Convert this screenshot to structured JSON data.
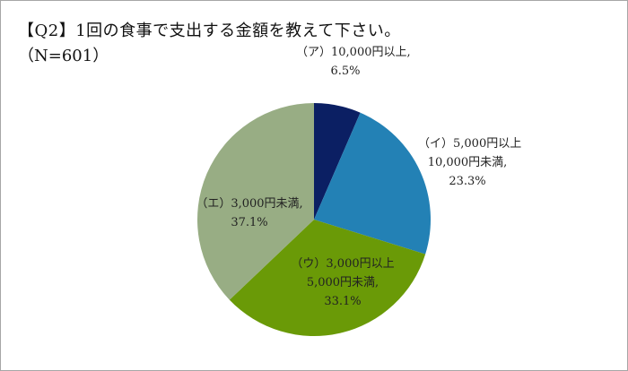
{
  "title": "【Q2】1回の食事で支出する金額を教えて下さい。",
  "subtitle": "（N=601）",
  "chart_data": {
    "type": "pie",
    "title": "【Q2】1回の食事で支出する金額を教えて下さい。",
    "subtitle": "（N=601）",
    "categories": [
      "（ア）10,000円以上",
      "（イ）5,000円以上10,000円未満",
      "（ウ）3,000円以上5,000円未満",
      "（エ）3,000円未満"
    ],
    "values": [
      6.5,
      23.3,
      33.1,
      37.1
    ],
    "unit": "%",
    "colors": [
      "#0b1f63",
      "#2381b5",
      "#6a9a07",
      "#98ad84"
    ],
    "start_angle_deg": 0,
    "direction": "clockwise",
    "legend": "none (data labels on/near slices)"
  },
  "labels": [
    {
      "lines": [
        "（ア）10,000円以上,",
        "6.5%"
      ]
    },
    {
      "lines": [
        "（イ）5,000円以上",
        "10,000円未満,",
        "23.3%"
      ]
    },
    {
      "lines": [
        "（ウ）3,000円以上",
        "5,000円未満,",
        "33.1%"
      ]
    },
    {
      "lines": [
        "（エ）3,000円未満,",
        "37.1%"
      ]
    }
  ]
}
